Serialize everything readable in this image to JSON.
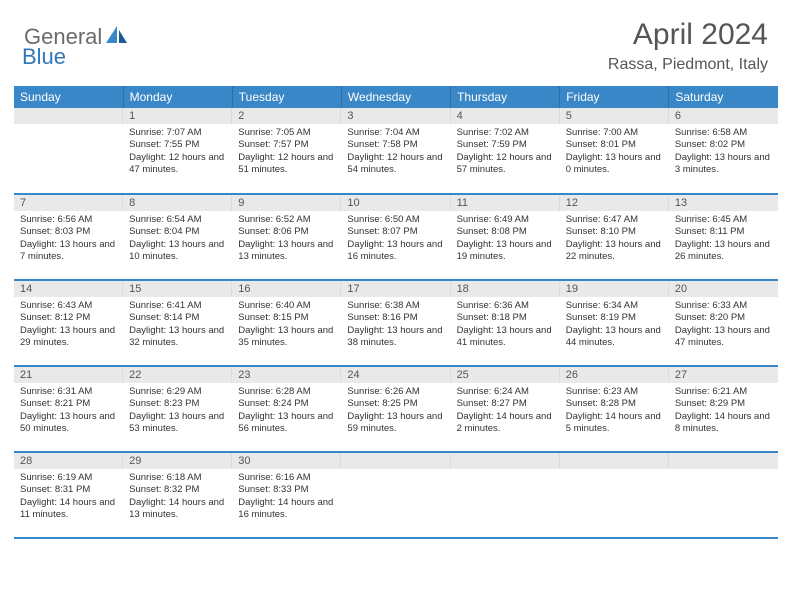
{
  "logo": {
    "text1": "General",
    "text2": "Blue"
  },
  "title": "April 2024",
  "location": "Rassa, Piedmont, Italy",
  "colors": {
    "headerBg": "#3a87c7",
    "headerText": "#ffffff",
    "daynumBg": "#e9e9e9",
    "rowDivider": "#3a87c7",
    "logoGray": "#6b6b6b",
    "logoBlue": "#3178b8"
  },
  "fonts": {
    "title_pt": 30,
    "location_pt": 16,
    "dayheader_pt": 12,
    "daynum_pt": 11,
    "body_pt": 9.5
  },
  "dayHeaders": [
    "Sunday",
    "Monday",
    "Tuesday",
    "Wednesday",
    "Thursday",
    "Friday",
    "Saturday"
  ],
  "weeks": [
    [
      null,
      {
        "n": "1",
        "sunrise": "7:07 AM",
        "sunset": "7:55 PM",
        "daylight": "12 hours and 47 minutes."
      },
      {
        "n": "2",
        "sunrise": "7:05 AM",
        "sunset": "7:57 PM",
        "daylight": "12 hours and 51 minutes."
      },
      {
        "n": "3",
        "sunrise": "7:04 AM",
        "sunset": "7:58 PM",
        "daylight": "12 hours and 54 minutes."
      },
      {
        "n": "4",
        "sunrise": "7:02 AM",
        "sunset": "7:59 PM",
        "daylight": "12 hours and 57 minutes."
      },
      {
        "n": "5",
        "sunrise": "7:00 AM",
        "sunset": "8:01 PM",
        "daylight": "13 hours and 0 minutes."
      },
      {
        "n": "6",
        "sunrise": "6:58 AM",
        "sunset": "8:02 PM",
        "daylight": "13 hours and 3 minutes."
      }
    ],
    [
      {
        "n": "7",
        "sunrise": "6:56 AM",
        "sunset": "8:03 PM",
        "daylight": "13 hours and 7 minutes."
      },
      {
        "n": "8",
        "sunrise": "6:54 AM",
        "sunset": "8:04 PM",
        "daylight": "13 hours and 10 minutes."
      },
      {
        "n": "9",
        "sunrise": "6:52 AM",
        "sunset": "8:06 PM",
        "daylight": "13 hours and 13 minutes."
      },
      {
        "n": "10",
        "sunrise": "6:50 AM",
        "sunset": "8:07 PM",
        "daylight": "13 hours and 16 minutes."
      },
      {
        "n": "11",
        "sunrise": "6:49 AM",
        "sunset": "8:08 PM",
        "daylight": "13 hours and 19 minutes."
      },
      {
        "n": "12",
        "sunrise": "6:47 AM",
        "sunset": "8:10 PM",
        "daylight": "13 hours and 22 minutes."
      },
      {
        "n": "13",
        "sunrise": "6:45 AM",
        "sunset": "8:11 PM",
        "daylight": "13 hours and 26 minutes."
      }
    ],
    [
      {
        "n": "14",
        "sunrise": "6:43 AM",
        "sunset": "8:12 PM",
        "daylight": "13 hours and 29 minutes."
      },
      {
        "n": "15",
        "sunrise": "6:41 AM",
        "sunset": "8:14 PM",
        "daylight": "13 hours and 32 minutes."
      },
      {
        "n": "16",
        "sunrise": "6:40 AM",
        "sunset": "8:15 PM",
        "daylight": "13 hours and 35 minutes."
      },
      {
        "n": "17",
        "sunrise": "6:38 AM",
        "sunset": "8:16 PM",
        "daylight": "13 hours and 38 minutes."
      },
      {
        "n": "18",
        "sunrise": "6:36 AM",
        "sunset": "8:18 PM",
        "daylight": "13 hours and 41 minutes."
      },
      {
        "n": "19",
        "sunrise": "6:34 AM",
        "sunset": "8:19 PM",
        "daylight": "13 hours and 44 minutes."
      },
      {
        "n": "20",
        "sunrise": "6:33 AM",
        "sunset": "8:20 PM",
        "daylight": "13 hours and 47 minutes."
      }
    ],
    [
      {
        "n": "21",
        "sunrise": "6:31 AM",
        "sunset": "8:21 PM",
        "daylight": "13 hours and 50 minutes."
      },
      {
        "n": "22",
        "sunrise": "6:29 AM",
        "sunset": "8:23 PM",
        "daylight": "13 hours and 53 minutes."
      },
      {
        "n": "23",
        "sunrise": "6:28 AM",
        "sunset": "8:24 PM",
        "daylight": "13 hours and 56 minutes."
      },
      {
        "n": "24",
        "sunrise": "6:26 AM",
        "sunset": "8:25 PM",
        "daylight": "13 hours and 59 minutes."
      },
      {
        "n": "25",
        "sunrise": "6:24 AM",
        "sunset": "8:27 PM",
        "daylight": "14 hours and 2 minutes."
      },
      {
        "n": "26",
        "sunrise": "6:23 AM",
        "sunset": "8:28 PM",
        "daylight": "14 hours and 5 minutes."
      },
      {
        "n": "27",
        "sunrise": "6:21 AM",
        "sunset": "8:29 PM",
        "daylight": "14 hours and 8 minutes."
      }
    ],
    [
      {
        "n": "28",
        "sunrise": "6:19 AM",
        "sunset": "8:31 PM",
        "daylight": "14 hours and 11 minutes."
      },
      {
        "n": "29",
        "sunrise": "6:18 AM",
        "sunset": "8:32 PM",
        "daylight": "14 hours and 13 minutes."
      },
      {
        "n": "30",
        "sunrise": "6:16 AM",
        "sunset": "8:33 PM",
        "daylight": "14 hours and 16 minutes."
      },
      null,
      null,
      null,
      null
    ]
  ],
  "labels": {
    "sunrise": "Sunrise:",
    "sunset": "Sunset:",
    "daylight": "Daylight:"
  }
}
